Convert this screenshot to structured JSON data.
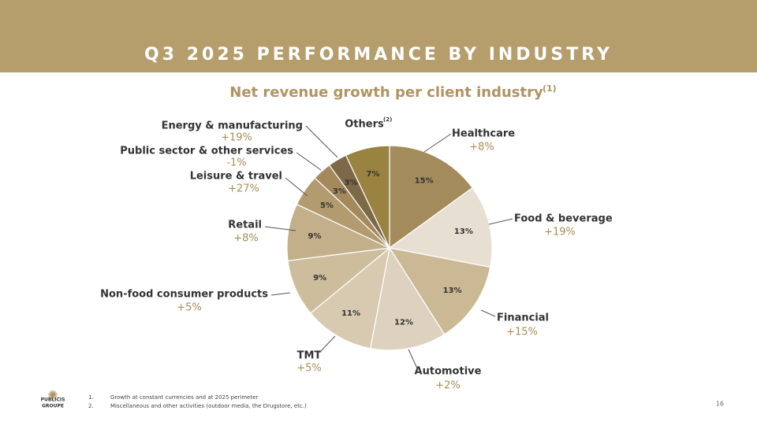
{
  "slide_title": "Q3 2025 PERFORMANCE BY INDUSTRY",
  "chart_data": {
    "type": "pie",
    "title": "Net revenue growth per client industry",
    "title_note": "(1)",
    "categories": [
      "Healthcare",
      "Food & beverage",
      "Financial",
      "Automotive",
      "TMT",
      "Non-food consumer products",
      "Retail",
      "Leisure & travel",
      "Public sector & other services",
      "Energy & manufacturing",
      "Others"
    ],
    "category_notes": [
      null,
      null,
      null,
      null,
      null,
      null,
      null,
      null,
      null,
      null,
      "(2)"
    ],
    "values": [
      15,
      13,
      13,
      12,
      11,
      9,
      9,
      5,
      3,
      3,
      7
    ],
    "value_labels": [
      "15%",
      "13%",
      "13%",
      "12%",
      "11%",
      "9%",
      "9%",
      "5%",
      "3%",
      "3%",
      "7%"
    ],
    "growth_labels": [
      "+8%",
      "+19%",
      "+15%",
      "+2%",
      "+5%",
      "+5%",
      "+8%",
      "+27%",
      "-1%",
      "+19%",
      null
    ],
    "colors": [
      "#a48b5b",
      "#e7dfd1",
      "#cbb995",
      "#ddd2bf",
      "#d7cab0",
      "#cdbd9d",
      "#c3af8a",
      "#b29b6e",
      "#a3895b",
      "#7c6947",
      "#9a8241"
    ]
  },
  "footnotes": [
    "Growth at constant currencies and at 2025 perimeter",
    "Miscellaneous and other activities (outdoor media, the Drugstore, etc.)"
  ],
  "footnote_numbers": [
    "1.",
    "2."
  ],
  "logo": [
    "PUBLICIS",
    "GROUPE"
  ],
  "page_number": "16"
}
